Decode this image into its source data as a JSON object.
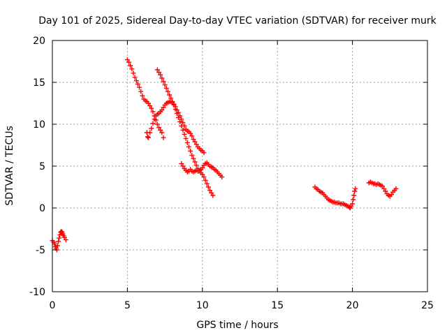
{
  "chart_data": {
    "type": "scatter",
    "title": "Day 101 of 2025, Sidereal Day-to-day VTEC variation (SDTVAR) for receiver murk",
    "xlabel": "GPS time / hours",
    "ylabel": "SDTVAR / TECUs",
    "xlim": [
      0,
      25
    ],
    "ylim": [
      -10,
      20
    ],
    "xticks": [
      0,
      5,
      10,
      15,
      20,
      25
    ],
    "yticks": [
      -10,
      -5,
      0,
      5,
      10,
      15,
      20
    ],
    "grid": true,
    "marker": "plus",
    "color": "#ff0000",
    "series": [
      {
        "points": [
          [
            0.0,
            -3.9
          ],
          [
            0.1,
            -4.1
          ],
          [
            0.15,
            -4.3
          ],
          [
            0.2,
            -4.6
          ],
          [
            0.25,
            -4.8
          ],
          [
            0.3,
            -5.0
          ],
          [
            0.35,
            -4.5
          ],
          [
            0.4,
            -4.0
          ],
          [
            0.45,
            -3.6
          ],
          [
            0.5,
            -3.2
          ],
          [
            0.55,
            -2.9
          ],
          [
            0.6,
            -2.8
          ],
          [
            0.65,
            -2.9
          ],
          [
            0.7,
            -3.1
          ],
          [
            0.75,
            -3.3
          ],
          [
            0.8,
            -3.5
          ],
          [
            0.9,
            -3.8
          ],
          [
            5.0,
            17.7
          ],
          [
            5.1,
            17.4
          ],
          [
            5.2,
            17.0
          ],
          [
            5.3,
            16.6
          ],
          [
            5.4,
            16.1
          ],
          [
            5.5,
            15.6
          ],
          [
            5.6,
            15.2
          ],
          [
            5.7,
            14.8
          ],
          [
            5.8,
            14.4
          ],
          [
            5.9,
            13.9
          ],
          [
            6.0,
            13.4
          ],
          [
            6.1,
            13.0
          ],
          [
            6.2,
            12.8
          ],
          [
            6.3,
            12.7
          ],
          [
            6.4,
            12.5
          ],
          [
            6.5,
            12.2
          ],
          [
            6.6,
            11.9
          ],
          [
            6.7,
            11.5
          ],
          [
            6.8,
            11.0
          ],
          [
            6.9,
            10.5
          ],
          [
            7.0,
            10.0
          ],
          [
            7.1,
            9.6
          ],
          [
            7.2,
            9.3
          ],
          [
            7.3,
            9.0
          ],
          [
            7.4,
            8.4
          ],
          [
            6.3,
            9.0
          ],
          [
            6.35,
            8.5
          ],
          [
            6.4,
            8.4
          ],
          [
            6.5,
            9.0
          ],
          [
            6.6,
            9.5
          ],
          [
            6.7,
            10.1
          ],
          [
            6.8,
            10.6
          ],
          [
            6.9,
            11.0
          ],
          [
            7.0,
            11.2
          ],
          [
            7.1,
            11.3
          ],
          [
            7.2,
            11.5
          ],
          [
            7.3,
            11.7
          ],
          [
            7.4,
            12.0
          ],
          [
            7.5,
            12.3
          ],
          [
            7.6,
            12.5
          ],
          [
            7.7,
            12.6
          ],
          [
            7.8,
            12.7
          ],
          [
            7.9,
            12.7
          ],
          [
            8.0,
            12.6
          ],
          [
            8.1,
            12.4
          ],
          [
            8.2,
            12.1
          ],
          [
            8.3,
            11.7
          ],
          [
            8.4,
            11.4
          ],
          [
            8.5,
            11.0
          ],
          [
            8.6,
            10.6
          ],
          [
            8.7,
            10.2
          ],
          [
            8.8,
            9.8
          ],
          [
            8.9,
            9.4
          ],
          [
            9.0,
            9.2
          ],
          [
            9.1,
            9.1
          ],
          [
            9.2,
            8.9
          ],
          [
            9.3,
            8.6
          ],
          [
            9.4,
            8.2
          ],
          [
            9.5,
            7.9
          ],
          [
            9.6,
            7.6
          ],
          [
            9.7,
            7.3
          ],
          [
            9.8,
            7.1
          ],
          [
            9.9,
            6.9
          ],
          [
            10.0,
            6.8
          ],
          [
            10.1,
            6.6
          ],
          [
            7.0,
            16.5
          ],
          [
            7.1,
            16.2
          ],
          [
            7.2,
            15.9
          ],
          [
            7.3,
            15.5
          ],
          [
            7.4,
            15.1
          ],
          [
            7.5,
            14.7
          ],
          [
            7.6,
            14.3
          ],
          [
            7.7,
            13.9
          ],
          [
            7.8,
            13.5
          ],
          [
            7.9,
            13.1
          ],
          [
            8.0,
            12.7
          ],
          [
            8.1,
            12.3
          ],
          [
            8.2,
            11.8
          ],
          [
            8.3,
            11.3
          ],
          [
            8.4,
            10.8
          ],
          [
            8.5,
            10.3
          ],
          [
            8.6,
            9.8
          ],
          [
            8.7,
            9.3
          ],
          [
            8.8,
            8.8
          ],
          [
            8.9,
            8.3
          ],
          [
            9.0,
            7.8
          ],
          [
            9.1,
            7.3
          ],
          [
            9.2,
            6.8
          ],
          [
            9.3,
            6.3
          ],
          [
            9.4,
            5.9
          ],
          [
            9.5,
            5.5
          ],
          [
            9.6,
            5.1
          ],
          [
            9.7,
            4.7
          ],
          [
            9.8,
            4.4
          ],
          [
            9.9,
            4.2
          ],
          [
            10.0,
            4.0
          ],
          [
            10.1,
            3.7
          ],
          [
            10.2,
            3.3
          ],
          [
            10.3,
            2.9
          ],
          [
            10.4,
            2.5
          ],
          [
            10.5,
            2.1
          ],
          [
            10.6,
            1.8
          ],
          [
            10.7,
            1.5
          ],
          [
            8.6,
            5.3
          ],
          [
            8.7,
            5.0
          ],
          [
            8.8,
            4.7
          ],
          [
            8.9,
            4.5
          ],
          [
            9.0,
            4.3
          ],
          [
            9.1,
            4.4
          ],
          [
            9.2,
            4.6
          ],
          [
            9.3,
            4.4
          ],
          [
            9.4,
            4.3
          ],
          [
            9.5,
            4.4
          ],
          [
            9.6,
            4.5
          ],
          [
            9.7,
            4.4
          ],
          [
            9.8,
            4.5
          ],
          [
            9.9,
            4.6
          ],
          [
            10.0,
            4.8
          ],
          [
            10.1,
            5.1
          ],
          [
            10.2,
            5.3
          ],
          [
            10.3,
            5.4
          ],
          [
            10.4,
            5.2
          ],
          [
            10.5,
            5.0
          ],
          [
            10.6,
            4.9
          ],
          [
            10.7,
            4.8
          ],
          [
            10.8,
            4.6
          ],
          [
            10.9,
            4.5
          ],
          [
            11.0,
            4.3
          ],
          [
            11.1,
            4.1
          ],
          [
            11.2,
            3.9
          ],
          [
            11.3,
            3.7
          ],
          [
            17.5,
            2.5
          ],
          [
            17.6,
            2.3
          ],
          [
            17.7,
            2.2
          ],
          [
            17.8,
            2.0
          ],
          [
            17.9,
            1.9
          ],
          [
            18.0,
            1.8
          ],
          [
            18.1,
            1.6
          ],
          [
            18.2,
            1.4
          ],
          [
            18.3,
            1.2
          ],
          [
            18.4,
            1.0
          ],
          [
            18.5,
            0.9
          ],
          [
            18.6,
            0.8
          ],
          [
            18.7,
            0.7
          ],
          [
            18.8,
            0.7
          ],
          [
            18.9,
            0.6
          ],
          [
            19.0,
            0.6
          ],
          [
            19.1,
            0.6
          ],
          [
            19.2,
            0.5
          ],
          [
            19.3,
            0.5
          ],
          [
            19.4,
            0.5
          ],
          [
            19.5,
            0.4
          ],
          [
            19.6,
            0.3
          ],
          [
            19.7,
            0.2
          ],
          [
            19.8,
            0.1
          ],
          [
            19.85,
            0.0
          ],
          [
            19.9,
            0.2
          ],
          [
            20.0,
            0.5
          ],
          [
            20.05,
            1.0
          ],
          [
            20.1,
            1.5
          ],
          [
            20.15,
            2.0
          ],
          [
            20.2,
            2.3
          ],
          [
            21.1,
            3.0
          ],
          [
            21.2,
            3.1
          ],
          [
            21.3,
            3.0
          ],
          [
            21.4,
            2.9
          ],
          [
            21.5,
            2.9
          ],
          [
            21.6,
            2.8
          ],
          [
            21.7,
            2.9
          ],
          [
            21.8,
            2.8
          ],
          [
            21.9,
            2.7
          ],
          [
            22.0,
            2.6
          ],
          [
            22.1,
            2.3
          ],
          [
            22.2,
            2.0
          ],
          [
            22.3,
            1.7
          ],
          [
            22.4,
            1.5
          ],
          [
            22.5,
            1.4
          ],
          [
            22.6,
            1.6
          ],
          [
            22.7,
            1.9
          ],
          [
            22.8,
            2.1
          ],
          [
            22.9,
            2.3
          ]
        ]
      }
    ]
  }
}
